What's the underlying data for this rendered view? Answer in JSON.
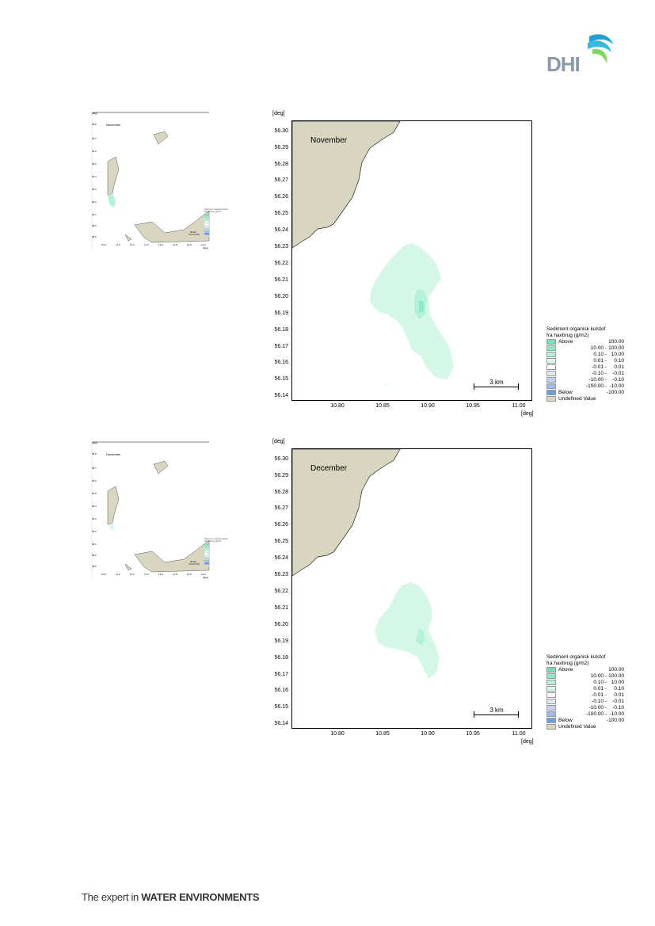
{
  "brand": {
    "logo_text": "DHI",
    "footer_prefix": "The expert in ",
    "footer_bold": "WATER ENVIRONMENTS"
  },
  "colors": {
    "land": "#d9d6c0",
    "plume_light": "#d4f7e8",
    "plume_mid": "#a6efd0",
    "plume_dark": "#6fe3b5",
    "logo_blue": "#1aa3d6",
    "logo_green": "#7ed957"
  },
  "maps": [
    {
      "title": "November",
      "unit": "[deg]",
      "y_ticks": [
        "56.30",
        "56.29",
        "56.28",
        "56.27",
        "56.26",
        "56.25",
        "56.24",
        "56.23",
        "56.22",
        "56.21",
        "56.20",
        "56.19",
        "56.18",
        "56.17",
        "56.16",
        "56.15",
        "56.14"
      ],
      "x_ticks": [
        "10.80",
        "10.85",
        "10.90",
        "10.95",
        "11.00"
      ],
      "scale_label": "3 km"
    },
    {
      "title": "December",
      "unit": "[deg]",
      "y_ticks": [
        "56.30",
        "56.29",
        "56.28",
        "56.27",
        "56.26",
        "56.25",
        "56.24",
        "56.23",
        "56.22",
        "56.21",
        "56.20",
        "56.19",
        "56.18",
        "56.17",
        "56.16",
        "56.15",
        "56.14"
      ],
      "x_ticks": [
        "10.80",
        "10.85",
        "10.90",
        "10.95",
        "11.00"
      ],
      "scale_label": "3 km"
    }
  ],
  "legend": {
    "title_line1": "Sediment organisk kulstof",
    "title_line2": "fra havbrug (g/m2)",
    "rows": [
      {
        "label": "Above",
        "v1": "",
        "v2": "100.00",
        "color": "#6fe3b5"
      },
      {
        "label": "",
        "v1": "10.00 -",
        "v2": "100.00",
        "color": "#8eeac5"
      },
      {
        "label": "",
        "v1": "0.10 -",
        "v2": "10.00",
        "color": "#b2f2d8"
      },
      {
        "label": "",
        "v1": "0.01 -",
        "v2": "0.10",
        "color": "#d7f8ea"
      },
      {
        "label": "",
        "v1": "-0.01 -",
        "v2": "0.01",
        "color": "#ffffff"
      },
      {
        "label": "",
        "v1": "-0.10 -",
        "v2": "-0.01",
        "color": "#dde9f7"
      },
      {
        "label": "",
        "v1": "-10.00 -",
        "v2": "-0.10",
        "color": "#bcd4f2"
      },
      {
        "label": "",
        "v1": "-100.00 -",
        "v2": "-10.00",
        "color": "#9cbdec"
      },
      {
        "label": "Below",
        "v1": "",
        "v2": "-100.00",
        "color": "#6f9ee0"
      },
      {
        "label": "Undefined Value",
        "v1": "",
        "v2": "",
        "color": "#d9d6c0"
      }
    ]
  },
  "thumbs": [
    {
      "title": "November",
      "unit": "[deg]",
      "y_ticks": [
        "56.8",
        "56.7",
        "56.6",
        "56.5",
        "56.4",
        "56.3",
        "56.2",
        "56.1",
        "56.0",
        "55.9"
      ],
      "x_ticks": [
        "10.6",
        "11.0",
        "11.2",
        "11.4",
        "11.6",
        "11.8",
        "12.0",
        "12.2"
      ],
      "scale_label": "30 km",
      "x_unit": "[deg]"
    },
    {
      "title": "December",
      "unit": "[deg]",
      "y_ticks": [
        "56.8",
        "56.7",
        "56.6",
        "56.5",
        "56.4",
        "56.3",
        "56.2",
        "56.1",
        "56.0",
        "55.9"
      ],
      "x_ticks": [
        "10.6",
        "11.0",
        "11.2",
        "11.4",
        "11.6",
        "11.8",
        "12.0",
        "12.2"
      ],
      "scale_label": "30 km",
      "x_unit": "[deg]"
    }
  ]
}
